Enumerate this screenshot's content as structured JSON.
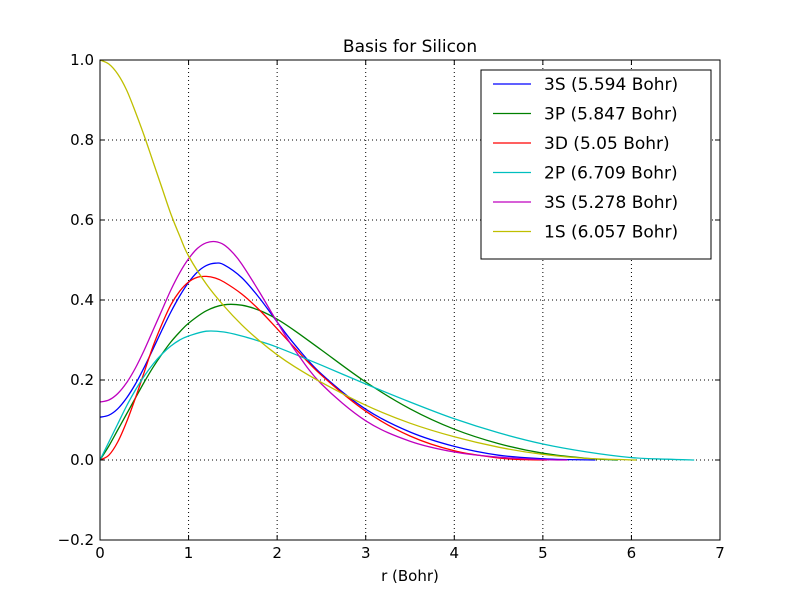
{
  "chart_data": {
    "type": "line",
    "title": "Basis for Silicon",
    "xlabel": "r (Bohr)",
    "ylabel": "",
    "xlim": [
      0,
      7
    ],
    "ylim": [
      -0.2,
      1.0
    ],
    "xticks": [
      0,
      1,
      2,
      3,
      4,
      5,
      6,
      7
    ],
    "yticks": [
      -0.2,
      0.0,
      0.2,
      0.4,
      0.6,
      0.8,
      1.0
    ],
    "xtick_labels": [
      "0",
      "1",
      "2",
      "3",
      "4",
      "5",
      "6",
      "7"
    ],
    "ytick_labels": [
      "−0.2",
      "0.0",
      "0.2",
      "0.4",
      "0.6",
      "0.8",
      "1.0"
    ],
    "grid": true,
    "legend_position": "top-right",
    "series": [
      {
        "name": "3S (5.594 Bohr)",
        "color": "#0000ff",
        "x": [
          0,
          0.1,
          0.2,
          0.3,
          0.4,
          0.5,
          0.6,
          0.7,
          0.8,
          0.9,
          1.0,
          1.1,
          1.2,
          1.3,
          1.4,
          1.6,
          1.8,
          2.0,
          2.2,
          2.5,
          3.0,
          3.5,
          4.0,
          4.5,
          5.0,
          5.3,
          5.594
        ],
        "y": [
          0.107,
          0.112,
          0.128,
          0.155,
          0.19,
          0.232,
          0.278,
          0.325,
          0.37,
          0.41,
          0.444,
          0.47,
          0.486,
          0.492,
          0.488,
          0.456,
          0.405,
          0.345,
          0.288,
          0.215,
          0.127,
          0.07,
          0.034,
          0.012,
          0.003,
          0.001,
          0.0
        ]
      },
      {
        "name": "3P (5.847 Bohr)",
        "color": "#008000",
        "x": [
          0,
          0.1,
          0.2,
          0.3,
          0.4,
          0.5,
          0.6,
          0.7,
          0.8,
          0.9,
          1.0,
          1.2,
          1.4,
          1.6,
          1.8,
          2.0,
          2.2,
          2.5,
          3.0,
          3.5,
          4.0,
          4.5,
          5.0,
          5.5,
          5.847
        ],
        "y": [
          0.0,
          0.035,
          0.075,
          0.115,
          0.155,
          0.195,
          0.232,
          0.265,
          0.295,
          0.32,
          0.342,
          0.373,
          0.388,
          0.387,
          0.374,
          0.352,
          0.323,
          0.275,
          0.195,
          0.128,
          0.077,
          0.041,
          0.017,
          0.004,
          0.0
        ]
      },
      {
        "name": "3D (5.05 Bohr)",
        "color": "#ff0000",
        "x": [
          0,
          0.1,
          0.2,
          0.3,
          0.4,
          0.5,
          0.6,
          0.7,
          0.8,
          0.9,
          1.0,
          1.1,
          1.2,
          1.3,
          1.4,
          1.6,
          1.8,
          2.0,
          2.2,
          2.5,
          3.0,
          3.5,
          4.0,
          4.5,
          4.8,
          5.05
        ],
        "y": [
          0.0,
          0.012,
          0.045,
          0.095,
          0.155,
          0.22,
          0.285,
          0.34,
          0.388,
          0.422,
          0.445,
          0.457,
          0.459,
          0.455,
          0.445,
          0.415,
          0.375,
          0.328,
          0.28,
          0.212,
          0.122,
          0.06,
          0.023,
          0.005,
          0.001,
          0.0
        ]
      },
      {
        "name": "2P (6.709 Bohr)",
        "color": "#00bfbf",
        "x": [
          0,
          0.1,
          0.2,
          0.3,
          0.4,
          0.5,
          0.6,
          0.7,
          0.8,
          0.9,
          1.0,
          1.2,
          1.4,
          1.6,
          1.8,
          2.0,
          2.5,
          3.0,
          3.5,
          4.0,
          4.5,
          5.0,
          5.5,
          6.0,
          6.4,
          6.709
        ],
        "y": [
          0.0,
          0.045,
          0.09,
          0.135,
          0.175,
          0.21,
          0.24,
          0.265,
          0.285,
          0.3,
          0.31,
          0.322,
          0.32,
          0.31,
          0.297,
          0.282,
          0.237,
          0.19,
          0.145,
          0.103,
          0.068,
          0.04,
          0.02,
          0.006,
          0.002,
          0.0
        ]
      },
      {
        "name": "3S (5.278 Bohr)",
        "color": "#bf00bf",
        "x": [
          0,
          0.1,
          0.2,
          0.3,
          0.4,
          0.5,
          0.6,
          0.7,
          0.8,
          0.9,
          1.0,
          1.1,
          1.2,
          1.3,
          1.4,
          1.5,
          1.6,
          1.8,
          2.0,
          2.2,
          2.5,
          3.0,
          3.5,
          4.0,
          4.5,
          5.0,
          5.278
        ],
        "y": [
          0.145,
          0.15,
          0.166,
          0.193,
          0.23,
          0.275,
          0.325,
          0.375,
          0.425,
          0.468,
          0.503,
          0.529,
          0.543,
          0.546,
          0.538,
          0.518,
          0.49,
          0.42,
          0.345,
          0.275,
          0.19,
          0.098,
          0.047,
          0.02,
          0.007,
          0.001,
          0.0
        ]
      },
      {
        "name": "1S (6.057 Bohr)",
        "color": "#bfbf00",
        "x": [
          0,
          0.1,
          0.2,
          0.3,
          0.4,
          0.5,
          0.6,
          0.7,
          0.8,
          0.9,
          1.0,
          1.2,
          1.4,
          1.6,
          1.8,
          2.0,
          2.2,
          2.5,
          3.0,
          3.5,
          4.0,
          4.5,
          5.0,
          5.5,
          6.057
        ],
        "y": [
          1.0,
          0.99,
          0.965,
          0.925,
          0.87,
          0.81,
          0.745,
          0.68,
          0.615,
          0.56,
          0.51,
          0.44,
          0.385,
          0.338,
          0.298,
          0.263,
          0.233,
          0.194,
          0.137,
          0.092,
          0.058,
          0.032,
          0.014,
          0.004,
          0.0
        ]
      }
    ]
  }
}
